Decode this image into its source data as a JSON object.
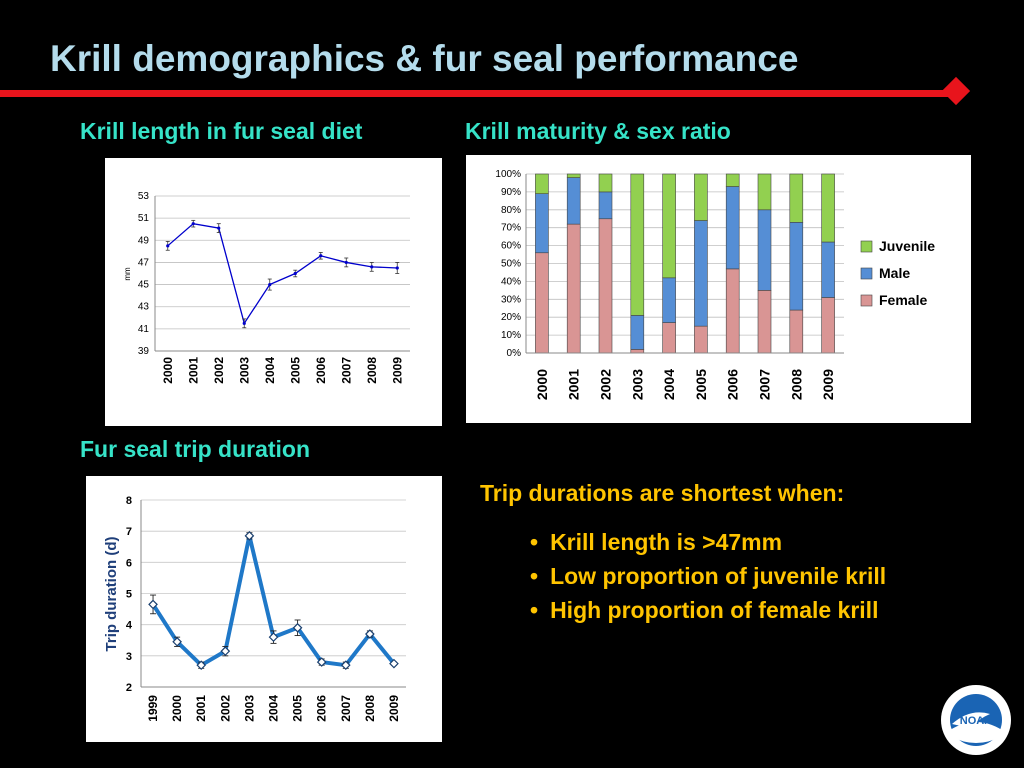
{
  "slide": {
    "title": "Krill demographics & fur seal performance",
    "colors": {
      "title": "#b4dcec",
      "rule": "#e8141c",
      "subtitle": "#36e3c8",
      "callout": "#ffc400"
    }
  },
  "panels": {
    "length_title": "Krill length in fur seal diet",
    "maturity_title": "Krill maturity & sex ratio",
    "trip_title": "Fur seal trip duration"
  },
  "callout": {
    "heading": "Trip durations are shortest when:",
    "bullets": [
      "Krill length is >47mm",
      "Low proportion of juvenile krill",
      "High proportion of female krill"
    ]
  },
  "logo": {
    "text": "NOAA",
    "icon": "noaa-logo-icon"
  },
  "chart_data": [
    {
      "id": "length",
      "type": "line",
      "title": "",
      "xlabel": "",
      "ylabel": "mm",
      "x": [
        "2000",
        "2001",
        "2002",
        "2003",
        "2004",
        "2005",
        "2006",
        "2007",
        "2008",
        "2009"
      ],
      "values": [
        48.5,
        50.5,
        50.1,
        41.5,
        45.0,
        46.0,
        47.6,
        47.0,
        46.6,
        46.5
      ],
      "error": [
        0.4,
        0.3,
        0.4,
        0.4,
        0.5,
        0.3,
        0.3,
        0.4,
        0.4,
        0.5
      ],
      "yticks": [
        39,
        41,
        43,
        45,
        47,
        49,
        51,
        53
      ],
      "ylim": [
        39,
        53
      ],
      "grid": true,
      "color": "#0000cc"
    },
    {
      "id": "maturity",
      "type": "bar",
      "stacked": true,
      "title": "",
      "categories": [
        "2000",
        "2001",
        "2002",
        "2003",
        "2004",
        "2005",
        "2006",
        "2007",
        "2008",
        "2009"
      ],
      "series": [
        {
          "name": "Female",
          "color": "#d99594",
          "values": [
            56,
            72,
            75,
            2,
            17,
            15,
            47,
            35,
            24,
            31
          ]
        },
        {
          "name": "Male",
          "color": "#558ed5",
          "values": [
            33,
            26,
            15,
            19,
            25,
            59,
            46,
            45,
            49,
            31
          ]
        },
        {
          "name": "Juvenile",
          "color": "#92d050",
          "values": [
            11,
            2,
            10,
            79,
            58,
            26,
            7,
            20,
            27,
            38
          ]
        }
      ],
      "yticks": [
        "0%",
        "10%",
        "20%",
        "30%",
        "40%",
        "50%",
        "60%",
        "70%",
        "80%",
        "90%",
        "100%"
      ],
      "ylim": [
        0,
        100
      ],
      "legend": "right",
      "grid": true
    },
    {
      "id": "trip",
      "type": "line",
      "title": "",
      "xlabel": "",
      "ylabel": "Trip duration (d)",
      "x": [
        "1999",
        "2000",
        "2001",
        "2002",
        "2003",
        "2004",
        "2005",
        "2006",
        "2007",
        "2008",
        "2009"
      ],
      "values": [
        4.65,
        3.45,
        2.7,
        3.15,
        6.85,
        3.6,
        3.9,
        2.8,
        2.7,
        3.7,
        2.75
      ],
      "error": [
        0.3,
        0.15,
        0.1,
        0.15,
        0.1,
        0.2,
        0.25,
        0.1,
        0.1,
        0.1,
        0.05
      ],
      "yticks": [
        2,
        3,
        4,
        5,
        6,
        7,
        8
      ],
      "ylim": [
        2,
        8
      ],
      "grid": true,
      "color": "#1f78c8"
    }
  ]
}
